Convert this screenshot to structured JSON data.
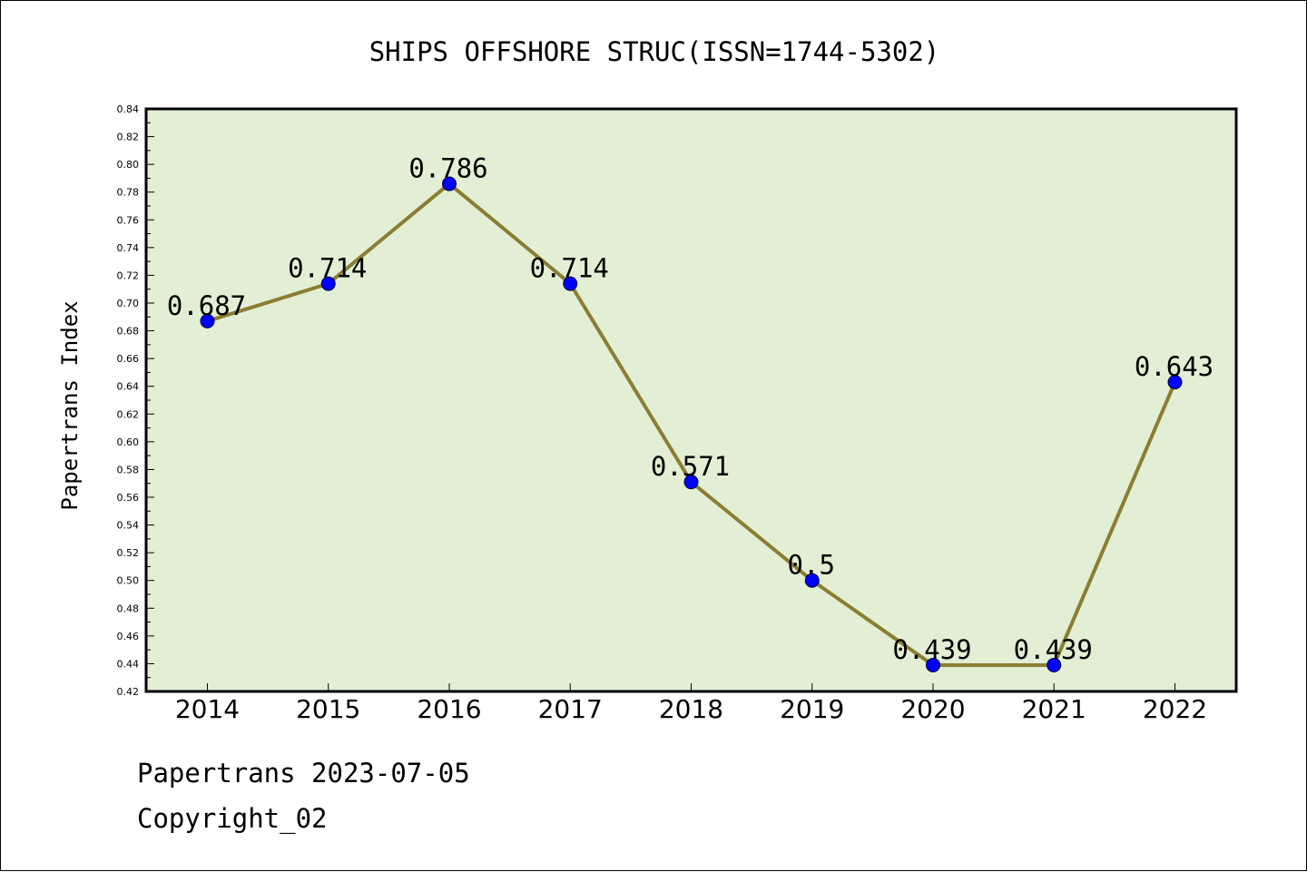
{
  "chart_data": {
    "type": "line",
    "title": "SHIPS OFFSHORE STRUC(ISSN=1744-5302)",
    "xlabel": "",
    "ylabel": "Papertrans Index",
    "categories": [
      "2014",
      "2015",
      "2016",
      "2017",
      "2018",
      "2019",
      "2020",
      "2021",
      "2022"
    ],
    "series": [
      {
        "values": [
          0.687,
          0.714,
          0.786,
          0.714,
          0.571,
          0.5,
          0.439,
          0.439,
          0.643
        ],
        "data_labels": [
          "0.687",
          "0.714",
          "0.786",
          "0.714",
          "0.571",
          "0.5",
          "0.439",
          "0.439",
          "0.643"
        ]
      }
    ],
    "ylim": [
      0.42,
      0.84
    ],
    "yticks": [
      "0.42",
      "0.44",
      "0.46",
      "0.48",
      "0.50",
      "0.52",
      "0.54",
      "0.56",
      "0.58",
      "0.60",
      "0.62",
      "0.64",
      "0.66",
      "0.68",
      "0.70",
      "0.72",
      "0.74",
      "0.76",
      "0.78",
      "0.80",
      "0.82",
      "0.84"
    ],
    "grid": false,
    "legend": "none",
    "colors": {
      "line": "#8b7d32",
      "marker": "#0000ff",
      "plot_background": "#e2efd5",
      "page_background": "#ffffff"
    }
  },
  "footer": {
    "line1": "Papertrans 2023-07-05",
    "line2": "Copyright_02"
  }
}
